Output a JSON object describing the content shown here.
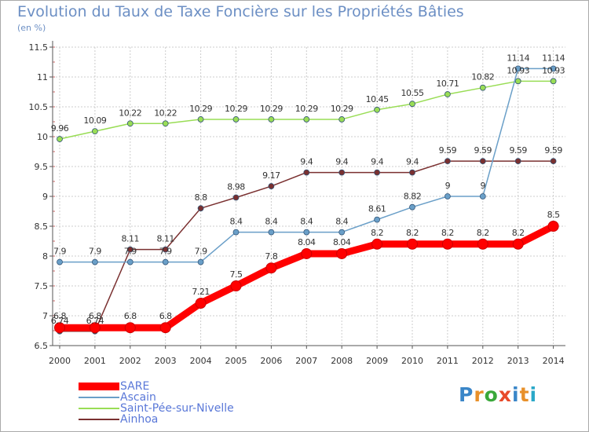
{
  "title": "Evolution du Taux de Taxe Foncière sur les Propriétés Bâties",
  "unit": "(en %)",
  "logo": {
    "letters": [
      "P",
      "r",
      "o",
      "x",
      "i",
      "t",
      "i"
    ],
    "colors": [
      "#3a86c8",
      "#e8902a",
      "#3aa83a",
      "#e84a2a",
      "#3a86c8",
      "#e8902a",
      "#2aa8c8"
    ]
  },
  "colors": {
    "title": "#6c8fc4",
    "axis": "#555555",
    "grid": "#cccccc",
    "label": "#333333"
  },
  "chart_data": {
    "type": "line",
    "title": "Evolution du Taux de Taxe Foncière sur les Propriétés Bâties",
    "ylabel": "(en %)",
    "xlabel": "",
    "x": [
      "2000",
      "2001",
      "2002",
      "2003",
      "2004",
      "2005",
      "2006",
      "2007",
      "2008",
      "2009",
      "2010",
      "2011",
      "2012",
      "2013",
      "2014"
    ],
    "ylim": [
      6.5,
      11.5
    ],
    "yticks": [
      6.5,
      7,
      7.5,
      8,
      8.5,
      9,
      9.5,
      10,
      10.5,
      11,
      11.5
    ],
    "ytick_labels": [
      "6.5",
      "7",
      "7.5",
      "8",
      "8.5",
      "9",
      "9.5",
      "10",
      "10.5",
      "11",
      "11.5"
    ],
    "grid": true,
    "legend_position": "bottom-left",
    "series": [
      {
        "name": "SARE",
        "color": "#ff0000",
        "values": [
          6.8,
          6.8,
          6.8,
          6.8,
          7.21,
          7.5,
          7.8,
          8.04,
          8.04,
          8.2,
          8.2,
          8.2,
          8.2,
          8.2,
          8.5
        ],
        "labels": [
          "6.8",
          "6.8",
          "6.8",
          "6.8",
          "7.21",
          "7.5",
          "7.8",
          "8.04",
          "8.04",
          "8.2",
          "8.2",
          "8.2",
          "8.2",
          "8.2",
          "8.5"
        ]
      },
      {
        "name": "Ascain",
        "color": "#6a9fc8",
        "values": [
          7.9,
          7.9,
          7.9,
          7.9,
          7.9,
          8.4,
          8.4,
          8.4,
          8.4,
          8.61,
          8.82,
          9,
          9,
          11.14,
          11.14
        ],
        "labels": [
          "7.9",
          "7.9",
          "7.9",
          "7.9",
          "7.9",
          "8.4",
          "8.4",
          "8.4",
          "8.4",
          "8.61",
          "8.82",
          "9",
          "9",
          "11.14",
          "11.14"
        ]
      },
      {
        "name": "Saint-Pée-sur-Nivelle",
        "color": "#99dd55",
        "values": [
          9.96,
          10.09,
          10.22,
          10.22,
          10.29,
          10.29,
          10.29,
          10.29,
          10.29,
          10.45,
          10.55,
          10.71,
          10.82,
          10.93,
          10.93
        ],
        "labels": [
          "9.96",
          "10.09",
          "10.22",
          "10.22",
          "10.29",
          "10.29",
          "10.29",
          "10.29",
          "10.29",
          "10.45",
          "10.55",
          "10.71",
          "10.82",
          "10.93",
          "10.93"
        ]
      },
      {
        "name": "Ainhoa",
        "color": "#7a3030",
        "values": [
          6.74,
          6.74,
          8.11,
          8.11,
          8.8,
          8.98,
          9.17,
          9.4,
          9.4,
          9.4,
          9.4,
          9.59,
          9.59,
          9.59,
          9.59
        ],
        "labels": [
          "6.74",
          "6.74",
          "8.11",
          "8.11",
          "8.8",
          "8.98",
          "9.17",
          "9.4",
          "9.4",
          "9.4",
          "9.4",
          "9.59",
          "9.59",
          "9.59",
          "9.59"
        ]
      }
    ]
  }
}
